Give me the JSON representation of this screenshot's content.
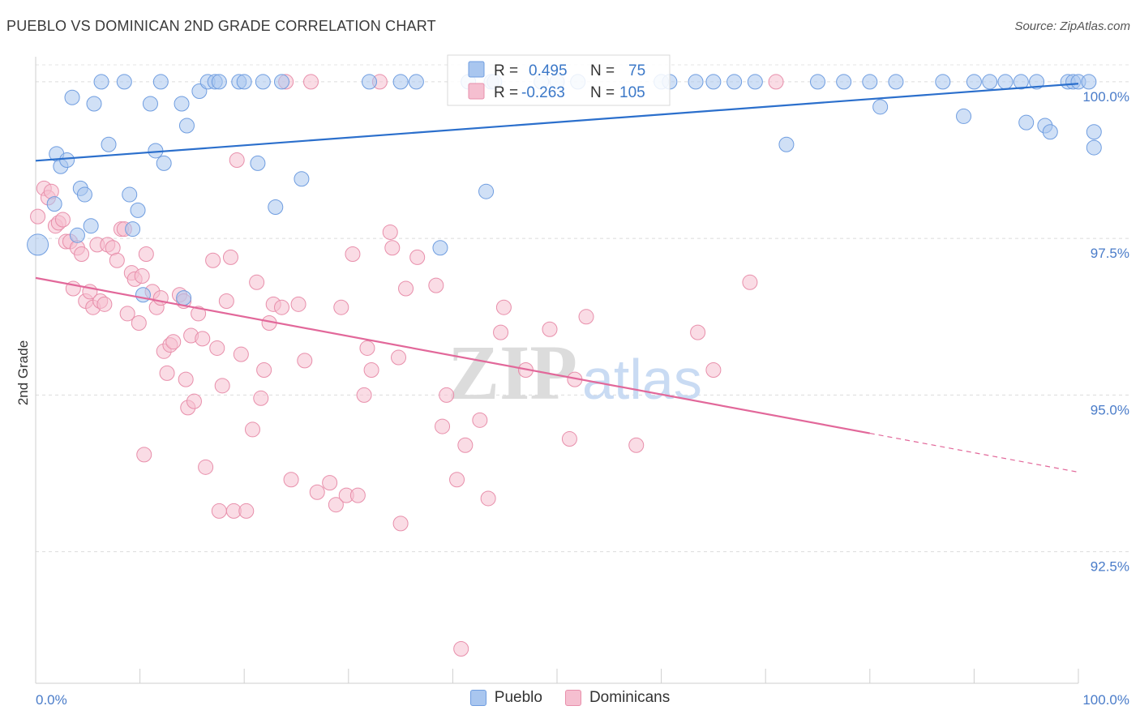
{
  "header": {
    "title": "PUEBLO VS DOMINICAN 2ND GRADE CORRELATION CHART",
    "source": "Source: ZipAtlas.com"
  },
  "watermark": {
    "zip": "ZIP",
    "atlas": "atlas"
  },
  "colors": {
    "pueblo_fill": "#a9c6ef",
    "pueblo_stroke": "#6f9de0",
    "pueblo_line": "#2b6fcc",
    "dominican_fill": "#f5bfd0",
    "dominican_stroke": "#e88fab",
    "dominican_line": "#e2689a",
    "value_blue": "#3b78c8"
  },
  "legend": {
    "rows": [
      {
        "r_label": "R =",
        "r_value": "0.495",
        "n_label": "N =",
        "n_value": "75"
      },
      {
        "r_label": "R =",
        "r_value": "-0.263",
        "n_label": "N =",
        "n_value": "105"
      }
    ]
  },
  "bottom_legend": {
    "pueblo": "Pueblo",
    "dominicans": "Dominicans"
  },
  "chart_data": {
    "type": "scatter",
    "title": "PUEBLO VS DOMINICAN 2ND GRADE CORRELATION CHART",
    "xlabel": "",
    "ylabel": "2nd Grade",
    "xlim": [
      0,
      100
    ],
    "ylim": [
      90.4,
      100.4
    ],
    "x_tick_labels": [
      "0.0%",
      "100.0%"
    ],
    "y_ticks": [
      92.5,
      95.0,
      97.5,
      100.0
    ],
    "y_tick_labels": [
      "92.5%",
      "95.0%",
      "97.5%",
      "100.0%"
    ],
    "grid": true,
    "legend_position": "top-center",
    "series": [
      {
        "name": "Pueblo",
        "r": 0.495,
        "n": 75,
        "trend": {
          "x": [
            0,
            100
          ],
          "y": [
            98.74,
            99.97
          ]
        },
        "points": [
          [
            0.2,
            97.4
          ],
          [
            1.8,
            98.05
          ],
          [
            2.0,
            98.85
          ],
          [
            2.4,
            98.65
          ],
          [
            3.0,
            98.75
          ],
          [
            3.5,
            99.75
          ],
          [
            4.0,
            97.55
          ],
          [
            4.3,
            98.3
          ],
          [
            4.7,
            98.2
          ],
          [
            5.3,
            97.7
          ],
          [
            5.6,
            99.65
          ],
          [
            6.3,
            100.0
          ],
          [
            7.0,
            99.0
          ],
          [
            8.5,
            100.0
          ],
          [
            9.0,
            98.2
          ],
          [
            9.3,
            97.65
          ],
          [
            9.8,
            97.95
          ],
          [
            10.3,
            96.6
          ],
          [
            11.0,
            99.65
          ],
          [
            11.5,
            98.9
          ],
          [
            12.0,
            100.0
          ],
          [
            12.3,
            98.7
          ],
          [
            14.0,
            99.65
          ],
          [
            14.2,
            96.55
          ],
          [
            14.5,
            99.3
          ],
          [
            15.7,
            99.85
          ],
          [
            16.5,
            100.0
          ],
          [
            17.2,
            100.0
          ],
          [
            17.6,
            100.0
          ],
          [
            19.5,
            100.0
          ],
          [
            20.0,
            100.0
          ],
          [
            21.3,
            98.7
          ],
          [
            21.8,
            100.0
          ],
          [
            23.0,
            98.0
          ],
          [
            23.6,
            100.0
          ],
          [
            25.5,
            98.45
          ],
          [
            32.0,
            100.0
          ],
          [
            35.0,
            100.0
          ],
          [
            36.5,
            100.0
          ],
          [
            38.8,
            97.35
          ],
          [
            41.5,
            100.0
          ],
          [
            43.2,
            98.25
          ],
          [
            43.7,
            100.0
          ],
          [
            44.0,
            100.0
          ],
          [
            48.5,
            100.0
          ],
          [
            50.0,
            100.0
          ],
          [
            52.0,
            100.0
          ],
          [
            60.0,
            100.0
          ],
          [
            60.8,
            100.0
          ],
          [
            63.3,
            100.0
          ],
          [
            65.0,
            100.0
          ],
          [
            67.0,
            100.0
          ],
          [
            69.0,
            100.0
          ],
          [
            72.0,
            99.0
          ],
          [
            75.0,
            100.0
          ],
          [
            77.5,
            100.0
          ],
          [
            80.0,
            100.0
          ],
          [
            81.0,
            99.6
          ],
          [
            82.5,
            100.0
          ],
          [
            87.0,
            100.0
          ],
          [
            89.0,
            99.45
          ],
          [
            90.0,
            100.0
          ],
          [
            91.5,
            100.0
          ],
          [
            93.0,
            100.0
          ],
          [
            94.5,
            100.0
          ],
          [
            95.0,
            99.35
          ],
          [
            96.0,
            100.0
          ],
          [
            96.8,
            99.3
          ],
          [
            97.3,
            99.2
          ],
          [
            99.0,
            100.0
          ],
          [
            99.5,
            100.0
          ],
          [
            100.0,
            100.0
          ],
          [
            101.0,
            100.0
          ],
          [
            102.0,
            99.2
          ],
          [
            103.5,
            98.95
          ]
        ]
      },
      {
        "name": "Dominicans",
        "r": -0.263,
        "n": 105,
        "trend": {
          "x": [
            0,
            80
          ],
          "y": [
            96.87,
            94.39
          ],
          "dashed_to": {
            "x": 100,
            "y": 93.77
          }
        },
        "points": [
          [
            0.2,
            97.85
          ],
          [
            0.8,
            98.3
          ],
          [
            1.2,
            98.15
          ],
          [
            1.5,
            98.25
          ],
          [
            1.9,
            97.7
          ],
          [
            2.2,
            97.75
          ],
          [
            2.6,
            97.8
          ],
          [
            2.9,
            97.45
          ],
          [
            3.3,
            97.45
          ],
          [
            3.6,
            96.7
          ],
          [
            4.0,
            97.35
          ],
          [
            4.4,
            97.25
          ],
          [
            4.8,
            96.5
          ],
          [
            5.2,
            96.65
          ],
          [
            5.5,
            96.4
          ],
          [
            5.9,
            97.4
          ],
          [
            6.2,
            96.5
          ],
          [
            6.6,
            96.45
          ],
          [
            6.9,
            97.4
          ],
          [
            7.4,
            97.35
          ],
          [
            7.8,
            97.15
          ],
          [
            8.2,
            97.65
          ],
          [
            8.5,
            97.65
          ],
          [
            8.8,
            96.3
          ],
          [
            9.2,
            96.95
          ],
          [
            9.5,
            96.85
          ],
          [
            9.9,
            96.15
          ],
          [
            10.2,
            96.9
          ],
          [
            10.6,
            97.25
          ],
          [
            10.4,
            94.05
          ],
          [
            11.2,
            96.65
          ],
          [
            11.6,
            96.4
          ],
          [
            12.0,
            96.55
          ],
          [
            12.3,
            95.7
          ],
          [
            12.6,
            95.35
          ],
          [
            12.9,
            95.8
          ],
          [
            13.2,
            95.85
          ],
          [
            13.8,
            96.6
          ],
          [
            14.2,
            96.5
          ],
          [
            14.4,
            95.25
          ],
          [
            14.6,
            94.8
          ],
          [
            14.9,
            95.95
          ],
          [
            15.2,
            94.9
          ],
          [
            15.6,
            96.3
          ],
          [
            16.0,
            95.9
          ],
          [
            16.3,
            93.85
          ],
          [
            17.0,
            97.15
          ],
          [
            17.4,
            95.75
          ],
          [
            17.6,
            93.15
          ],
          [
            17.9,
            95.15
          ],
          [
            18.3,
            96.5
          ],
          [
            18.7,
            97.2
          ],
          [
            19.0,
            93.15
          ],
          [
            19.3,
            98.75
          ],
          [
            19.7,
            95.65
          ],
          [
            20.2,
            93.15
          ],
          [
            20.8,
            94.45
          ],
          [
            21.2,
            96.8
          ],
          [
            21.6,
            94.95
          ],
          [
            21.9,
            95.4
          ],
          [
            22.4,
            96.15
          ],
          [
            22.8,
            96.45
          ],
          [
            23.6,
            96.4
          ],
          [
            24.0,
            100.0
          ],
          [
            24.5,
            93.65
          ],
          [
            25.2,
            96.45
          ],
          [
            25.8,
            95.55
          ],
          [
            26.4,
            100.0
          ],
          [
            27.0,
            93.45
          ],
          [
            28.2,
            93.6
          ],
          [
            28.8,
            93.25
          ],
          [
            29.3,
            96.4
          ],
          [
            29.8,
            93.4
          ],
          [
            30.4,
            97.25
          ],
          [
            30.9,
            93.4
          ],
          [
            31.5,
            95.0
          ],
          [
            31.8,
            95.75
          ],
          [
            32.2,
            95.4
          ],
          [
            33.0,
            100.0
          ],
          [
            34.0,
            97.6
          ],
          [
            34.2,
            97.35
          ],
          [
            34.8,
            95.6
          ],
          [
            35.0,
            92.95
          ],
          [
            35.5,
            96.7
          ],
          [
            36.6,
            97.2
          ],
          [
            38.4,
            96.75
          ],
          [
            39.0,
            94.5
          ],
          [
            39.4,
            95.0
          ],
          [
            40.4,
            93.65
          ],
          [
            40.8,
            90.95
          ],
          [
            41.2,
            94.2
          ],
          [
            42.6,
            94.6
          ],
          [
            43.4,
            93.35
          ],
          [
            44.6,
            96.0
          ],
          [
            44.9,
            96.4
          ],
          [
            47.0,
            95.4
          ],
          [
            49.3,
            96.05
          ],
          [
            51.2,
            94.3
          ],
          [
            51.7,
            95.25
          ],
          [
            52.8,
            96.25
          ],
          [
            57.6,
            94.2
          ],
          [
            63.5,
            96.0
          ],
          [
            65.0,
            95.4
          ],
          [
            68.5,
            96.8
          ],
          [
            71.0,
            100.0
          ]
        ]
      }
    ]
  }
}
